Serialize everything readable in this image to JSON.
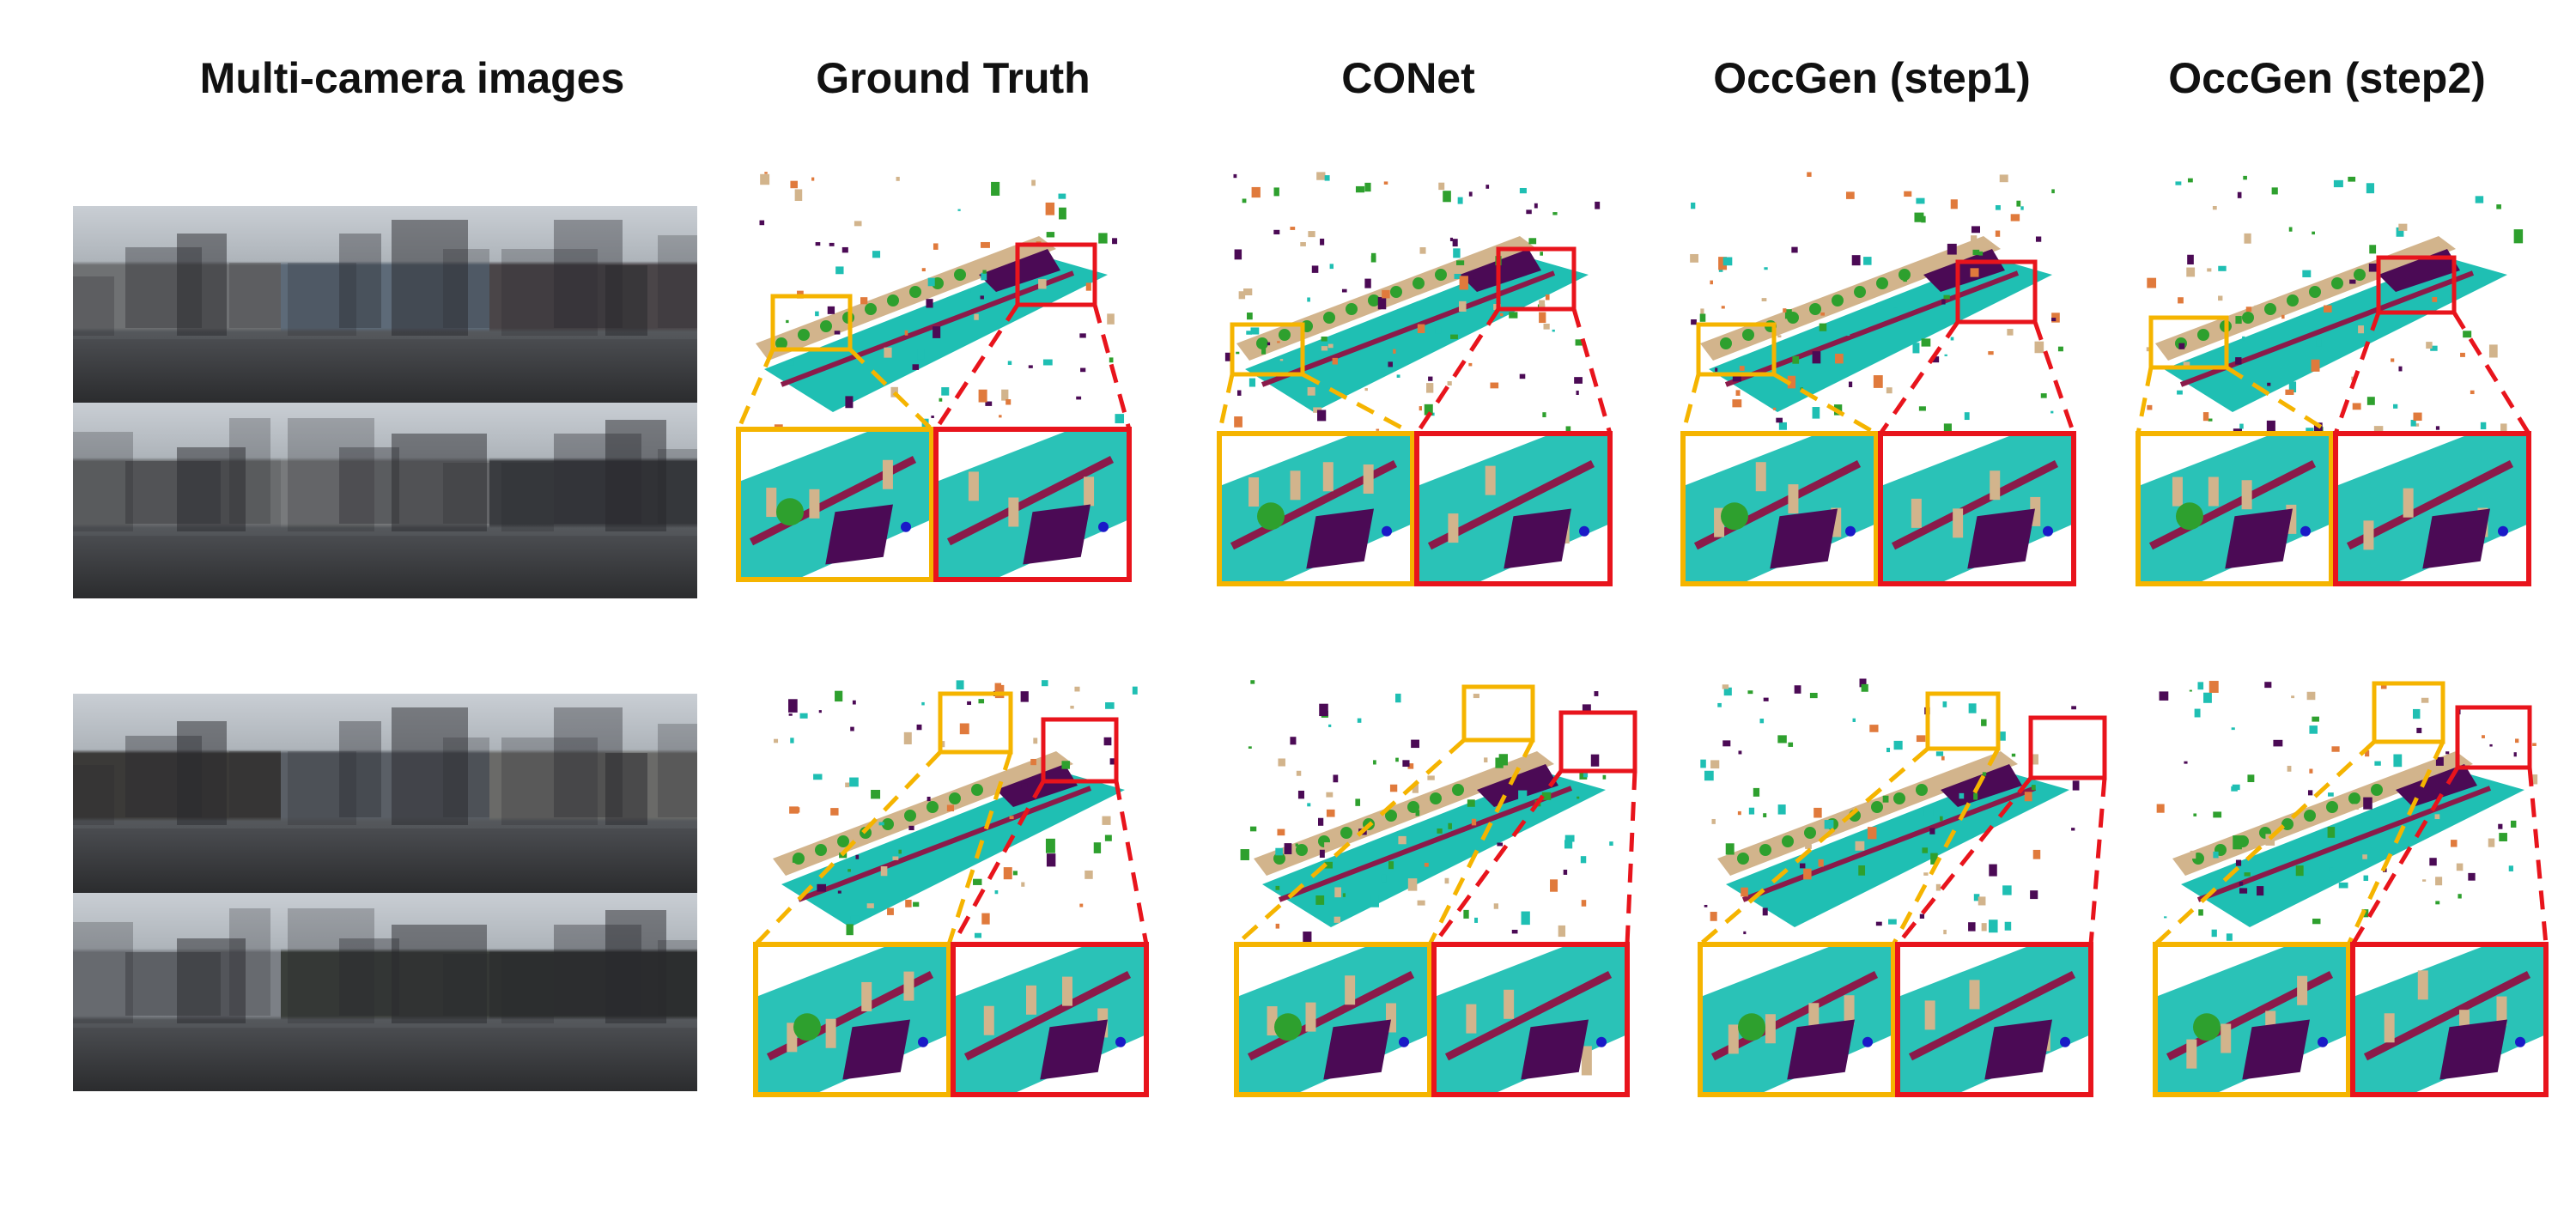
{
  "headers": {
    "multi_camera": "Multi-camera images",
    "ground_truth": "Ground Truth",
    "conet": "CONet",
    "occgen_step1": "OccGen (step1)",
    "occgen_step2": "OccGen (step2)"
  },
  "colors": {
    "drivable": "#1fbfb3",
    "manmade": "#d2b48c",
    "vegetation": "#2ea02e",
    "sidewalk": "#4b0a55",
    "barrier": "#8b1a4a",
    "car": "#e07a3c",
    "pedestrian": "#1a1ac8",
    "zoom_left_box": "#f5b400",
    "zoom_right_box": "#e8141c"
  },
  "rows": [
    {
      "cams": [
        "#6f7173",
        "#5d6a78",
        "#4a4548",
        "#6a6c6e",
        "#787a7c",
        "#3a3c40"
      ]
    },
    {
      "cams": [
        "#3b3a38",
        "#5a5f66",
        "#6a6a68",
        "#7c8086",
        "#3a3e3a",
        "#2e3030"
      ]
    }
  ]
}
